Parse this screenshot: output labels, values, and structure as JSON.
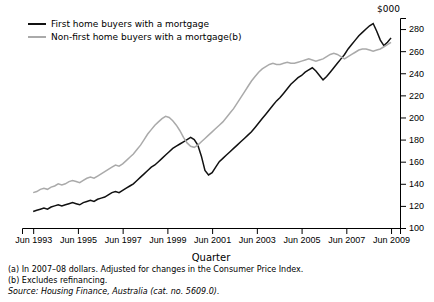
{
  "chart_data": {
    "type": "line",
    "xlabel": "Quarter",
    "ylabel": "$000",
    "annotations": [
      "(a) In 2007–08 dollars. Adjusted for changes in the Consumer Price Index.",
      "(b) Excludes refinancing.",
      "Source: Housing Finance, Australia  (cat.  no.  5609.0)."
    ],
    "legend": "upper left",
    "grid": false,
    "xlim": [
      1993.0,
      2009.9
    ],
    "xticks": [
      {
        "value": 1993.5,
        "label": "Jun 1993"
      },
      {
        "value": 1995.5,
        "label": "Jun 1995"
      },
      {
        "value": 1997.5,
        "label": "Jun 1997"
      },
      {
        "value": 1999.5,
        "label": "Jun 1999"
      },
      {
        "value": 2001.5,
        "label": "Jun 2001"
      },
      {
        "value": 2003.5,
        "label": "Jun 2003"
      },
      {
        "value": 2005.5,
        "label": "Jun 2005"
      },
      {
        "value": 2007.5,
        "label": "Jun 2007"
      },
      {
        "value": 2009.5,
        "label": "Jun 2009"
      }
    ],
    "ylim": [
      100,
      290
    ],
    "yticks": [
      100,
      120,
      140,
      160,
      180,
      200,
      220,
      240,
      260,
      280
    ],
    "x": [
      1993.5,
      1993.66,
      1993.82,
      1993.98,
      1994.14,
      1994.3,
      1994.46,
      1994.62,
      1994.78,
      1994.94,
      1995.1,
      1995.26,
      1995.42,
      1995.58,
      1995.74,
      1995.9,
      1996.06,
      1996.22,
      1996.38,
      1996.54,
      1996.7,
      1996.86,
      1997.02,
      1997.18,
      1997.34,
      1997.5,
      1997.66,
      1997.82,
      1997.98,
      1998.14,
      1998.3,
      1998.46,
      1998.62,
      1998.78,
      1998.94,
      1999.1,
      1999.26,
      1999.42,
      1999.58,
      1999.74,
      1999.9,
      2000.06,
      2000.22,
      2000.38,
      2000.54,
      2000.7,
      2000.86,
      2001.02,
      2001.18,
      2001.34,
      2001.5,
      2001.66,
      2001.82,
      2001.98,
      2002.14,
      2002.3,
      2002.46,
      2002.62,
      2002.78,
      2002.94,
      2003.1,
      2003.26,
      2003.42,
      2003.58,
      2003.74,
      2003.9,
      2004.06,
      2004.22,
      2004.38,
      2004.54,
      2004.7,
      2004.86,
      2005.02,
      2005.18,
      2005.34,
      2005.5,
      2005.66,
      2005.82,
      2005.98,
      2006.14,
      2006.3,
      2006.46,
      2006.62,
      2006.78,
      2006.94,
      2007.1,
      2007.26,
      2007.42,
      2007.58,
      2007.74,
      2007.9,
      2008.06,
      2008.22,
      2008.38,
      2008.54,
      2008.7,
      2008.86,
      2009.02,
      2009.18,
      2009.34,
      2009.5
    ],
    "series": [
      {
        "name": "First home buyers with a mortgage",
        "color": "#111111",
        "values": [
          115,
          116,
          117,
          118,
          117,
          119,
          120,
          121,
          120,
          121,
          122,
          123,
          122,
          121,
          123,
          124,
          125,
          124,
          126,
          127,
          128,
          130,
          132,
          133,
          132,
          134,
          136,
          138,
          140,
          143,
          146,
          149,
          152,
          155,
          157,
          160,
          163,
          166,
          169,
          172,
          174,
          176,
          178,
          180,
          182,
          180,
          175,
          165,
          152,
          148,
          150,
          155,
          160,
          163,
          166,
          169,
          172,
          175,
          178,
          181,
          184,
          187,
          191,
          195,
          199,
          203,
          207,
          211,
          215,
          218,
          222,
          226,
          230,
          233,
          236,
          238,
          241,
          243,
          245,
          242,
          238,
          234,
          237,
          241,
          245,
          249,
          253,
          257,
          262,
          266,
          270,
          274,
          277,
          280,
          283,
          285,
          278,
          270,
          265,
          268,
          272
        ]
      },
      {
        "name": "Non-first home buyers with a mortgage(b)",
        "color": "#aaaaaa",
        "values": [
          132,
          133,
          135,
          136,
          135,
          137,
          138,
          140,
          139,
          140,
          142,
          143,
          142,
          141,
          143,
          145,
          146,
          145,
          147,
          149,
          151,
          153,
          155,
          157,
          156,
          158,
          161,
          164,
          167,
          171,
          175,
          180,
          185,
          189,
          193,
          196,
          199,
          201,
          200,
          197,
          193,
          188,
          182,
          177,
          174,
          173,
          175,
          178,
          181,
          184,
          187,
          190,
          193,
          196,
          200,
          204,
          208,
          213,
          218,
          223,
          228,
          233,
          237,
          241,
          244,
          246,
          248,
          249,
          248,
          248,
          249,
          250,
          249,
          249,
          250,
          251,
          252,
          253,
          252,
          251,
          252,
          253,
          255,
          257,
          258,
          257,
          255,
          253,
          255,
          257,
          259,
          261,
          262,
          262,
          261,
          260,
          261,
          262,
          264,
          266,
          268
        ]
      }
    ]
  }
}
